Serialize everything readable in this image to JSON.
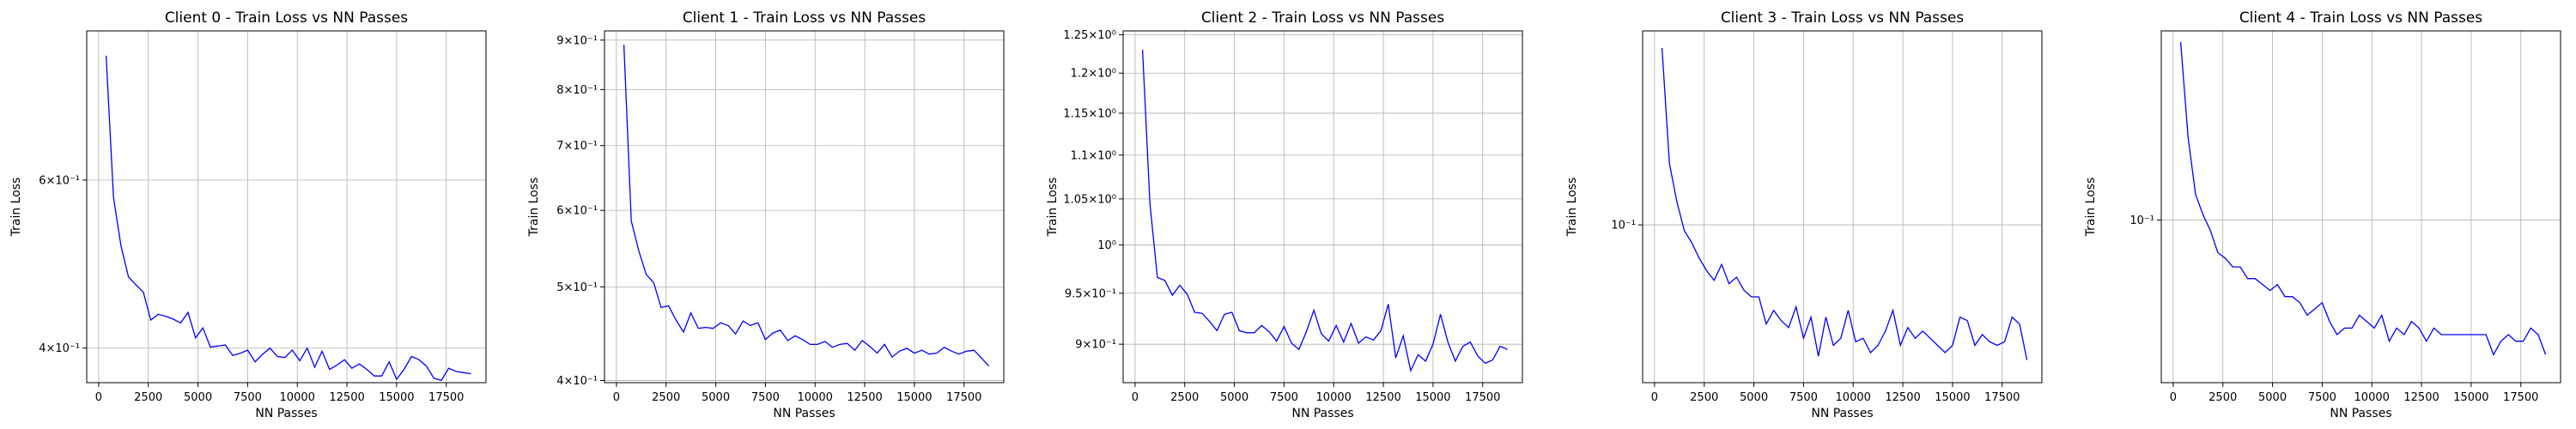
{
  "chart_data": [
    {
      "type": "line",
      "title": "Client 0 - Train Loss vs NN Passes",
      "xlabel": "NN Passes",
      "ylabel": "Train Loss",
      "yscale": "log",
      "grid": "x-major, y-major",
      "xlim": [
        -600,
        19500
      ],
      "ylim": [
        0.368,
        0.86
      ],
      "xticks": [
        0,
        2500,
        5000,
        7500,
        10000,
        12500,
        15000,
        17500
      ],
      "xtick_labels": [
        "0",
        "2500",
        "5000",
        "7500",
        "10000",
        "12500",
        "15000",
        "17500"
      ],
      "yticks": [
        0.4,
        0.6
      ],
      "ytick_labels": [
        "4×10⁻¹",
        "6×10⁻¹"
      ],
      "series": [
        {
          "color": "#0000ff",
          "x": [
            375,
            750,
            1125,
            1500,
            1875,
            2250,
            2625,
            3000,
            3375,
            3750,
            4125,
            4500,
            4875,
            5250,
            5625,
            6000,
            6375,
            6750,
            7125,
            7500,
            7875,
            8250,
            8625,
            9000,
            9375,
            9750,
            10125,
            10500,
            10875,
            11250,
            11625,
            12000,
            12375,
            12750,
            13125,
            13500,
            13875,
            14250,
            14625,
            15000,
            15375,
            15750,
            16125,
            16500,
            16875,
            17250,
            17625,
            18000,
            18375,
            18750
          ],
          "values": [
            0.81,
            0.575,
            0.512,
            0.475,
            0.466,
            0.458,
            0.428,
            0.434,
            0.432,
            0.429,
            0.425,
            0.436,
            0.41,
            0.42,
            0.401,
            0.402,
            0.403,
            0.393,
            0.395,
            0.398,
            0.387,
            0.394,
            0.4,
            0.392,
            0.391,
            0.398,
            0.388,
            0.4,
            0.382,
            0.397,
            0.38,
            0.384,
            0.389,
            0.381,
            0.385,
            0.38,
            0.374,
            0.374,
            0.387,
            0.371,
            0.38,
            0.392,
            0.389,
            0.383,
            0.372,
            0.37,
            0.381,
            0.378,
            0.377,
            0.376
          ]
        }
      ]
    },
    {
      "type": "line",
      "title": "Client 1 - Train Loss vs NN Passes",
      "xlabel": "NN Passes",
      "ylabel": "Train Loss",
      "yscale": "log",
      "grid": "x-major, y-major",
      "xlim": [
        -600,
        19500
      ],
      "ylim": [
        0.398,
        0.92
      ],
      "xticks": [
        0,
        2500,
        5000,
        7500,
        10000,
        12500,
        15000,
        17500
      ],
      "xtick_labels": [
        "0",
        "2500",
        "5000",
        "7500",
        "10000",
        "12500",
        "15000",
        "17500"
      ],
      "yticks": [
        0.4,
        0.5,
        0.6,
        0.7,
        0.8,
        0.9
      ],
      "ytick_labels": [
        "4×10⁻¹",
        "5×10⁻¹",
        "6×10⁻¹",
        "7×10⁻¹",
        "8×10⁻¹",
        "9×10⁻¹"
      ],
      "series": [
        {
          "color": "#0000ff",
          "x": [
            375,
            750,
            1125,
            1500,
            1875,
            2250,
            2625,
            3000,
            3375,
            3750,
            4125,
            4500,
            4875,
            5250,
            5625,
            6000,
            6375,
            6750,
            7125,
            7500,
            7875,
            8250,
            8625,
            9000,
            9375,
            9750,
            10125,
            10500,
            10875,
            11250,
            11625,
            12000,
            12375,
            12750,
            13125,
            13500,
            13875,
            14250,
            14625,
            15000,
            15375,
            15750,
            16125,
            16500,
            16875,
            17250,
            17625,
            18000,
            18375,
            18750
          ],
          "values": [
            0.89,
            0.585,
            0.545,
            0.515,
            0.505,
            0.476,
            0.478,
            0.462,
            0.449,
            0.47,
            0.453,
            0.454,
            0.453,
            0.459,
            0.456,
            0.447,
            0.461,
            0.456,
            0.459,
            0.441,
            0.448,
            0.451,
            0.44,
            0.445,
            0.441,
            0.436,
            0.436,
            0.439,
            0.433,
            0.436,
            0.437,
            0.43,
            0.44,
            0.434,
            0.427,
            0.436,
            0.423,
            0.429,
            0.432,
            0.427,
            0.43,
            0.426,
            0.427,
            0.433,
            0.429,
            0.426,
            0.429,
            0.43,
            0.422,
            0.414
          ]
        }
      ]
    },
    {
      "type": "line",
      "title": "Client 2 - Train Loss vs NN Passes",
      "xlabel": "NN Passes",
      "ylabel": "Train Loss",
      "yscale": "log",
      "grid": "x-major, y-major",
      "xlim": [
        -600,
        19500
      ],
      "ylim": [
        0.864,
        1.255
      ],
      "xticks": [
        0,
        2500,
        5000,
        7500,
        10000,
        12500,
        15000,
        17500
      ],
      "xtick_labels": [
        "0",
        "2500",
        "5000",
        "7500",
        "10000",
        "12500",
        "15000",
        "17500"
      ],
      "yticks": [
        0.9,
        0.95,
        1.0,
        1.05,
        1.1,
        1.15,
        1.2,
        1.25
      ],
      "ytick_labels": [
        "9×10⁻¹",
        "9.5×10⁻¹",
        "10⁰",
        "1.05×10⁰",
        "1.1×10⁰",
        "1.15×10⁰",
        "1.2×10⁰",
        "1.25×10⁰"
      ],
      "series": [
        {
          "color": "#0000ff",
          "x": [
            375,
            750,
            1125,
            1500,
            1875,
            2250,
            2625,
            3000,
            3375,
            3750,
            4125,
            4500,
            4875,
            5250,
            5625,
            6000,
            6375,
            6750,
            7125,
            7500,
            7875,
            8250,
            8625,
            9000,
            9375,
            9750,
            10125,
            10500,
            10875,
            11250,
            11625,
            12000,
            12375,
            12750,
            13125,
            13500,
            13875,
            14250,
            14625,
            15000,
            15375,
            15750,
            16125,
            16500,
            16875,
            17250,
            17625,
            18000,
            18375,
            18750
          ],
          "values": [
            1.23,
            1.045,
            0.966,
            0.963,
            0.948,
            0.958,
            0.949,
            0.931,
            0.93,
            0.922,
            0.913,
            0.929,
            0.931,
            0.913,
            0.911,
            0.911,
            0.918,
            0.912,
            0.903,
            0.917,
            0.901,
            0.895,
            0.912,
            0.933,
            0.91,
            0.903,
            0.918,
            0.902,
            0.92,
            0.901,
            0.907,
            0.904,
            0.913,
            0.939,
            0.887,
            0.908,
            0.875,
            0.89,
            0.884,
            0.9,
            0.929,
            0.902,
            0.884,
            0.898,
            0.902,
            0.889,
            0.882,
            0.885,
            0.898,
            0.895
          ]
        }
      ]
    },
    {
      "type": "line",
      "title": "Client 3 - Train Loss vs NN Passes",
      "xlabel": "NN Passes",
      "ylabel": "Train Loss",
      "yscale": "log",
      "grid": "x-major, y-major",
      "xlim": [
        -600,
        19500
      ],
      "ylim": [
        0.0765,
        0.139
      ],
      "xticks": [
        0,
        2500,
        5000,
        7500,
        10000,
        12500,
        15000,
        17500
      ],
      "xtick_labels": [
        "0",
        "2500",
        "5000",
        "7500",
        "10000",
        "12500",
        "15000",
        "17500"
      ],
      "yticks": [
        0.1
      ],
      "ytick_labels": [
        "10⁻¹"
      ],
      "series": [
        {
          "color": "#0000ff",
          "x": [
            375,
            750,
            1125,
            1500,
            1875,
            2250,
            2625,
            3000,
            3375,
            3750,
            4125,
            4500,
            4875,
            5250,
            5625,
            6000,
            6375,
            6750,
            7125,
            7500,
            7875,
            8250,
            8625,
            9000,
            9375,
            9750,
            10125,
            10500,
            10875,
            11250,
            11625,
            12000,
            12375,
            12750,
            13125,
            13500,
            13875,
            14250,
            14625,
            15000,
            15375,
            15750,
            16125,
            16500,
            16875,
            17250,
            17625,
            18000,
            18375,
            18750
          ],
          "values": [
            0.135,
            0.111,
            0.104,
            0.099,
            0.097,
            0.0945,
            0.0925,
            0.091,
            0.0935,
            0.0905,
            0.0915,
            0.0895,
            0.0885,
            0.0885,
            0.0845,
            0.0865,
            0.085,
            0.084,
            0.087,
            0.0825,
            0.0855,
            0.08,
            0.0855,
            0.0815,
            0.0825,
            0.0865,
            0.082,
            0.0825,
            0.0805,
            0.0815,
            0.0835,
            0.0865,
            0.0815,
            0.084,
            0.0825,
            0.0835,
            0.0825,
            0.0815,
            0.0805,
            0.0815,
            0.0855,
            0.085,
            0.0815,
            0.083,
            0.082,
            0.0815,
            0.082,
            0.0855,
            0.0845,
            0.0795
          ]
        }
      ]
    },
    {
      "type": "line",
      "title": "Client 4 - Train Loss vs NN Passes",
      "xlabel": "NN Passes",
      "ylabel": "Train Loss",
      "yscale": "log",
      "grid": "x-major, y-major",
      "xlim": [
        -600,
        19500
      ],
      "ylim": [
        0.0735,
        0.143
      ],
      "xticks": [
        0,
        2500,
        5000,
        7500,
        10000,
        12500,
        15000,
        17500
      ],
      "xtick_labels": [
        "0",
        "2500",
        "5000",
        "7500",
        "10000",
        "12500",
        "15000",
        "17500"
      ],
      "yticks": [
        0.1
      ],
      "ytick_labels": [
        "10⁻¹"
      ],
      "series": [
        {
          "color": "#0000ff",
          "x": [
            375,
            750,
            1125,
            1500,
            1875,
            2250,
            2625,
            3000,
            3375,
            3750,
            4125,
            4500,
            4875,
            5250,
            5625,
            6000,
            6375,
            6750,
            7125,
            7500,
            7875,
            8250,
            8625,
            9000,
            9375,
            9750,
            10125,
            10500,
            10875,
            11250,
            11625,
            12000,
            12375,
            12750,
            13125,
            13500,
            13875,
            14250,
            14625,
            15000,
            15375,
            15750,
            16125,
            16500,
            16875,
            17250,
            17625,
            18000,
            18375,
            18750
          ],
          "values": [
            0.14,
            0.117,
            0.105,
            0.101,
            0.098,
            0.094,
            0.093,
            0.0915,
            0.0915,
            0.0895,
            0.0895,
            0.0885,
            0.0875,
            0.0885,
            0.0865,
            0.0865,
            0.0855,
            0.0835,
            0.0845,
            0.0855,
            0.0825,
            0.0805,
            0.0815,
            0.0815,
            0.0835,
            0.0825,
            0.0815,
            0.0835,
            0.0795,
            0.0815,
            0.0805,
            0.0825,
            0.0815,
            0.0795,
            0.0815,
            0.0805,
            0.0805,
            0.0805,
            0.0805,
            0.0805,
            0.0805,
            0.0805,
            0.0775,
            0.0795,
            0.0805,
            0.0795,
            0.0795,
            0.0815,
            0.0805,
            0.0775
          ]
        }
      ]
    }
  ]
}
